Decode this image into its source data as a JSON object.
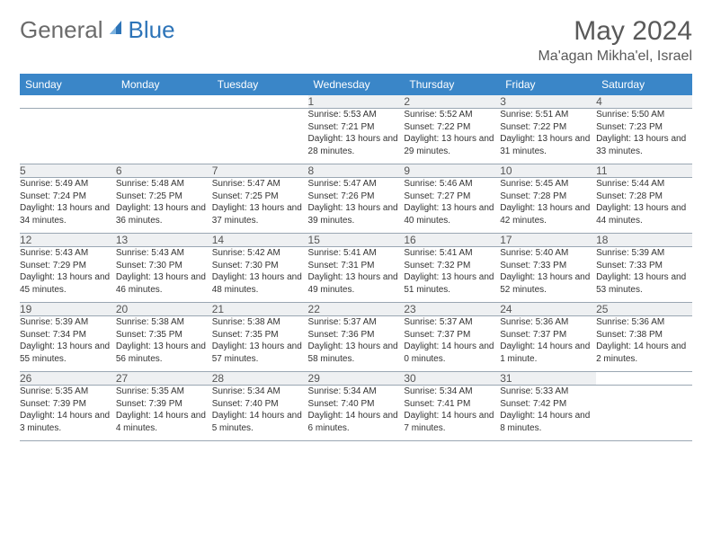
{
  "logo": {
    "text1": "General",
    "text2": "Blue"
  },
  "title": "May 2024",
  "location": "Ma'agan Mikha'el, Israel",
  "daysOfWeek": [
    "Sunday",
    "Monday",
    "Tuesday",
    "Wednesday",
    "Thursday",
    "Friday",
    "Saturday"
  ],
  "colors": {
    "headerBg": "#3a86c8",
    "headerText": "#ffffff",
    "dayRowBg": "#eef0f2",
    "bodyText": "#333333",
    "titleText": "#595959",
    "logoGray": "#6b6b6b",
    "logoBlue": "#2d74b8",
    "rowBorder": "#9aa7b3"
  },
  "weeks": [
    [
      null,
      null,
      null,
      {
        "n": "1",
        "sr": "5:53 AM",
        "ss": "7:21 PM",
        "dl": "13 hours and 28 minutes."
      },
      {
        "n": "2",
        "sr": "5:52 AM",
        "ss": "7:22 PM",
        "dl": "13 hours and 29 minutes."
      },
      {
        "n": "3",
        "sr": "5:51 AM",
        "ss": "7:22 PM",
        "dl": "13 hours and 31 minutes."
      },
      {
        "n": "4",
        "sr": "5:50 AM",
        "ss": "7:23 PM",
        "dl": "13 hours and 33 minutes."
      }
    ],
    [
      {
        "n": "5",
        "sr": "5:49 AM",
        "ss": "7:24 PM",
        "dl": "13 hours and 34 minutes."
      },
      {
        "n": "6",
        "sr": "5:48 AM",
        "ss": "7:25 PM",
        "dl": "13 hours and 36 minutes."
      },
      {
        "n": "7",
        "sr": "5:47 AM",
        "ss": "7:25 PM",
        "dl": "13 hours and 37 minutes."
      },
      {
        "n": "8",
        "sr": "5:47 AM",
        "ss": "7:26 PM",
        "dl": "13 hours and 39 minutes."
      },
      {
        "n": "9",
        "sr": "5:46 AM",
        "ss": "7:27 PM",
        "dl": "13 hours and 40 minutes."
      },
      {
        "n": "10",
        "sr": "5:45 AM",
        "ss": "7:28 PM",
        "dl": "13 hours and 42 minutes."
      },
      {
        "n": "11",
        "sr": "5:44 AM",
        "ss": "7:28 PM",
        "dl": "13 hours and 44 minutes."
      }
    ],
    [
      {
        "n": "12",
        "sr": "5:43 AM",
        "ss": "7:29 PM",
        "dl": "13 hours and 45 minutes."
      },
      {
        "n": "13",
        "sr": "5:43 AM",
        "ss": "7:30 PM",
        "dl": "13 hours and 46 minutes."
      },
      {
        "n": "14",
        "sr": "5:42 AM",
        "ss": "7:30 PM",
        "dl": "13 hours and 48 minutes."
      },
      {
        "n": "15",
        "sr": "5:41 AM",
        "ss": "7:31 PM",
        "dl": "13 hours and 49 minutes."
      },
      {
        "n": "16",
        "sr": "5:41 AM",
        "ss": "7:32 PM",
        "dl": "13 hours and 51 minutes."
      },
      {
        "n": "17",
        "sr": "5:40 AM",
        "ss": "7:33 PM",
        "dl": "13 hours and 52 minutes."
      },
      {
        "n": "18",
        "sr": "5:39 AM",
        "ss": "7:33 PM",
        "dl": "13 hours and 53 minutes."
      }
    ],
    [
      {
        "n": "19",
        "sr": "5:39 AM",
        "ss": "7:34 PM",
        "dl": "13 hours and 55 minutes."
      },
      {
        "n": "20",
        "sr": "5:38 AM",
        "ss": "7:35 PM",
        "dl": "13 hours and 56 minutes."
      },
      {
        "n": "21",
        "sr": "5:38 AM",
        "ss": "7:35 PM",
        "dl": "13 hours and 57 minutes."
      },
      {
        "n": "22",
        "sr": "5:37 AM",
        "ss": "7:36 PM",
        "dl": "13 hours and 58 minutes."
      },
      {
        "n": "23",
        "sr": "5:37 AM",
        "ss": "7:37 PM",
        "dl": "14 hours and 0 minutes."
      },
      {
        "n": "24",
        "sr": "5:36 AM",
        "ss": "7:37 PM",
        "dl": "14 hours and 1 minute."
      },
      {
        "n": "25",
        "sr": "5:36 AM",
        "ss": "7:38 PM",
        "dl": "14 hours and 2 minutes."
      }
    ],
    [
      {
        "n": "26",
        "sr": "5:35 AM",
        "ss": "7:39 PM",
        "dl": "14 hours and 3 minutes."
      },
      {
        "n": "27",
        "sr": "5:35 AM",
        "ss": "7:39 PM",
        "dl": "14 hours and 4 minutes."
      },
      {
        "n": "28",
        "sr": "5:34 AM",
        "ss": "7:40 PM",
        "dl": "14 hours and 5 minutes."
      },
      {
        "n": "29",
        "sr": "5:34 AM",
        "ss": "7:40 PM",
        "dl": "14 hours and 6 minutes."
      },
      {
        "n": "30",
        "sr": "5:34 AM",
        "ss": "7:41 PM",
        "dl": "14 hours and 7 minutes."
      },
      {
        "n": "31",
        "sr": "5:33 AM",
        "ss": "7:42 PM",
        "dl": "14 hours and 8 minutes."
      },
      null
    ]
  ],
  "labels": {
    "sunrise": "Sunrise: ",
    "sunset": "Sunset: ",
    "daylight": "Daylight: "
  }
}
